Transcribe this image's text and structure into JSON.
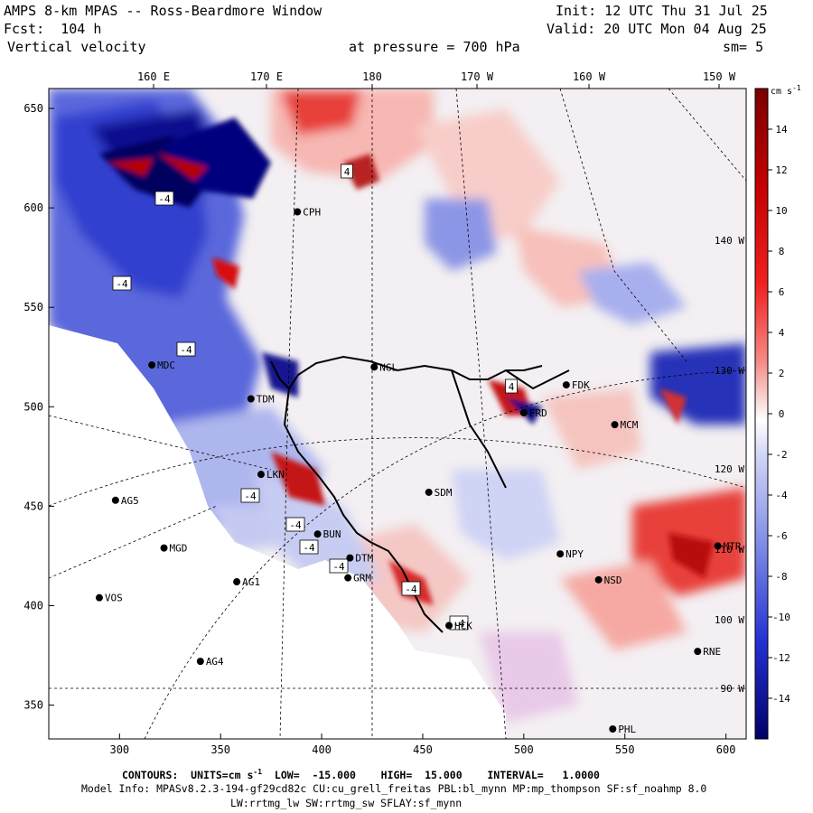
{
  "header": {
    "title": "AMPS 8-km MPAS -- Ross-Beardmore Window",
    "init": "Init: 12 UTC Thu 31 Jul 25",
    "fcst_label": "Fcst:",
    "fcst_value": "104 h",
    "valid": "Valid: 20 UTC Mon 04 Aug 25",
    "field": "Vertical velocity",
    "pressure_label": "at pressure =",
    "pressure_value": "700 hPa",
    "smoothing": "sm= 5"
  },
  "map": {
    "top_ticks": [
      "160 E",
      "170 E",
      "180",
      "170 W",
      "160 W",
      "150 W"
    ],
    "y_ticks": [
      "650",
      "600",
      "550",
      "500",
      "450",
      "400",
      "350"
    ],
    "x_ticks": [
      "300",
      "350",
      "400",
      "450",
      "500",
      "550",
      "600"
    ],
    "right_lon_labels": [
      "140 W",
      "130 W",
      "120 W",
      "110 W",
      "100 W",
      "90 W"
    ],
    "stations": [
      {
        "id": "CPH",
        "x": 388,
        "y": 598
      },
      {
        "id": "MDC",
        "x": 316,
        "y": 521
      },
      {
        "id": "NGL",
        "x": 426,
        "y": 520
      },
      {
        "id": "FDK",
        "x": 521,
        "y": 511
      },
      {
        "id": "FRD",
        "x": 500,
        "y": 497
      },
      {
        "id": "MCM",
        "x": 545,
        "y": 491
      },
      {
        "id": "TDM",
        "x": 365,
        "y": 504
      },
      {
        "id": "LKN",
        "x": 370,
        "y": 466
      },
      {
        "id": "AG5",
        "x": 298,
        "y": 453
      },
      {
        "id": "SDM",
        "x": 453,
        "y": 457
      },
      {
        "id": "BUN",
        "x": 398,
        "y": 436
      },
      {
        "id": "MGD",
        "x": 322,
        "y": 429
      },
      {
        "id": "DTM",
        "x": 414,
        "y": 424
      },
      {
        "id": "NPY",
        "x": 518,
        "y": 426
      },
      {
        "id": "MTR",
        "x": 596,
        "y": 430
      },
      {
        "id": "GRM",
        "x": 413,
        "y": 414
      },
      {
        "id": "AG1",
        "x": 358,
        "y": 412
      },
      {
        "id": "NSD",
        "x": 537,
        "y": 413
      },
      {
        "id": "VOS",
        "x": 290,
        "y": 404
      },
      {
        "id": "HCK",
        "x": 463,
        "y": 390
      },
      {
        "id": "RNE",
        "x": 586,
        "y": 377
      },
      {
        "id": "AG4",
        "x": 340,
        "y": 372
      },
      {
        "id": "PHL",
        "x": 544,
        "y": 338
      }
    ],
    "contour_labels": [
      "4",
      "4",
      "-4",
      "-4",
      "-4",
      "-4",
      "-4",
      "-4",
      "-4",
      "-4",
      "-4"
    ]
  },
  "colorbar": {
    "units": "cm s",
    "units_exp": "-1",
    "ticks": [
      "14",
      "12",
      "10",
      "8",
      "6",
      "4",
      "2",
      "0",
      "-2",
      "-4",
      "-6",
      "-8",
      "-10",
      "-12",
      "-14"
    ]
  },
  "footer": {
    "contours_label": "CONTOURS:",
    "units": "UNITS=cm s",
    "units_exp": "-1",
    "low": "LOW=  -15.000",
    "high": "HIGH=  15.000",
    "interval": "INTERVAL=   1.0000",
    "model_info": "Model Info: MPASv8.2.3-194-gf29cd82c CU:cu_grell_freitas PBL:bl_mynn MP:mp_thompson SF:sf_noahmp 8.0",
    "physics": "LW:rrtmg_lw SW:rrtmg_sw SFLAY:sf_mynn"
  },
  "colors": {
    "strong_up": "#8b0000",
    "up": "#e8413a",
    "weak_up": "#f7c7c2",
    "neutral": "#f3eff2",
    "weak_down": "#c9cef2",
    "down": "#4b5dd8",
    "strong_down": "#05047e"
  }
}
